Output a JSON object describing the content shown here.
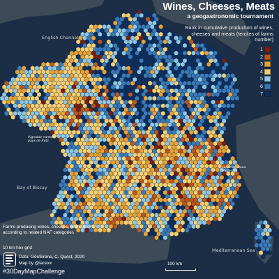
{
  "header": {
    "title": "Wines, Cheeses, Meats",
    "subtitle": "a geogastronomic tournament"
  },
  "legend": {
    "title": "Rank in cumulative production of wines, cheeses and meats (terciles of farms number)",
    "items": [
      {
        "label": "1",
        "color": "#7a1f0d"
      },
      {
        "label": "2",
        "color": "#c0561c"
      },
      {
        "label": "3",
        "color": "#e7a236"
      },
      {
        "label": "4",
        "color": "#f6cf73"
      },
      {
        "label": "5",
        "color": "#8ec7e3"
      },
      {
        "label": "6",
        "color": "#3a7ab8"
      },
      {
        "label": "7",
        "color": "#0e2f5e"
      }
    ]
  },
  "map": {
    "water_labels": {
      "channel": "English Channel",
      "biscay": "Bay of Biscay",
      "med": "Mediterranean Sea"
    },
    "annotations": {
      "nantais": "Vignoble nantais, pays de Retz",
      "drome": "vallée du Doux (Ardèche)"
    },
    "colors": {
      "background": "#1b2e45",
      "land": "#3d4a57"
    }
  },
  "footer": {
    "note": "Farms producing wines, cheeses, or meats  according to related NAF categories",
    "grid_note": "10 km hex grid",
    "source": "Data: GéoSirene, C. Quest, 2020",
    "author": "Map by @lacaxx",
    "hashtag": "#30DayMapChallenge",
    "scale": "100 km"
  }
}
